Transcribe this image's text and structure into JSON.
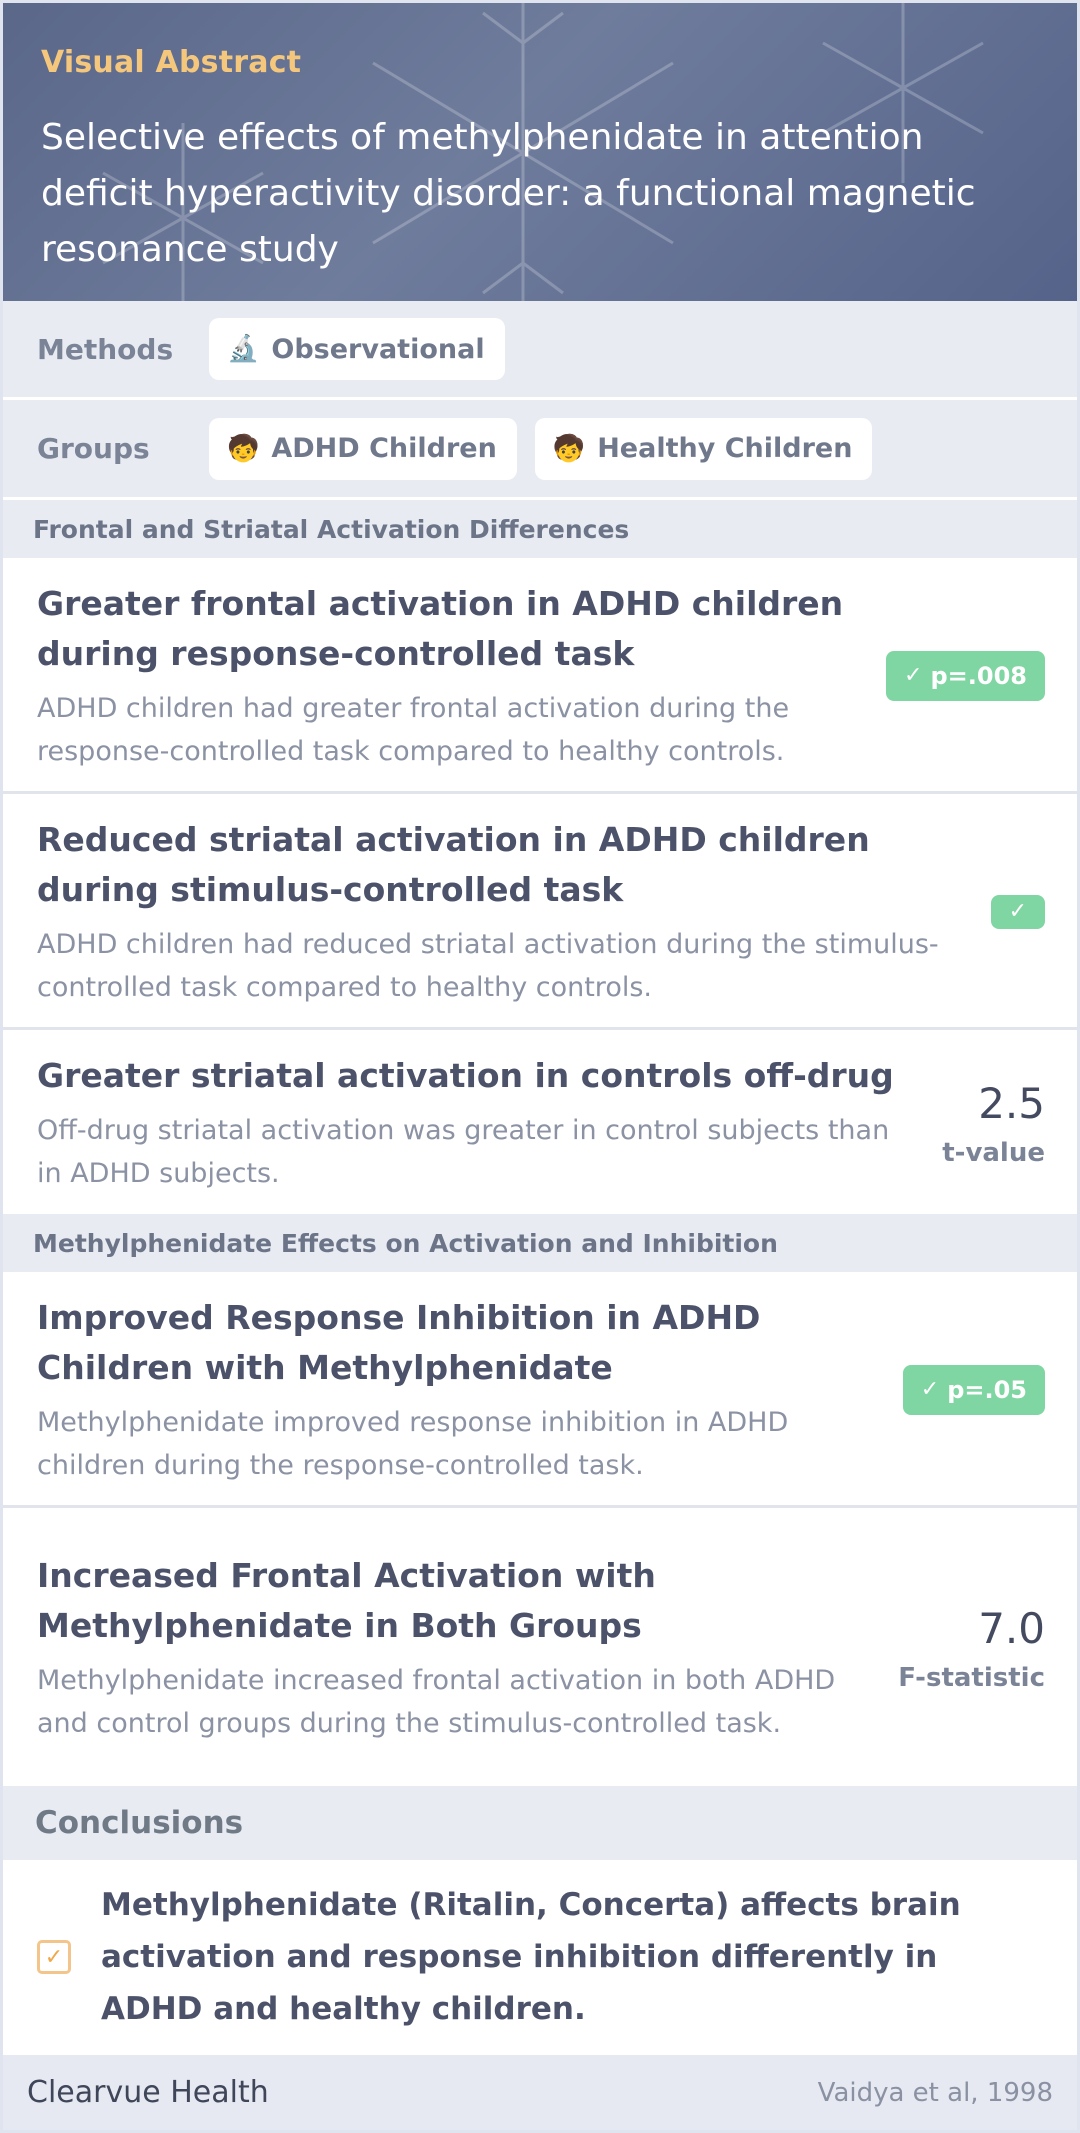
{
  "header": {
    "eyebrow": "Visual Abstract",
    "title": "Selective effects of methylphenidate in attention deficit hyperactivity disorder: a functional magnetic resonance study"
  },
  "methods": {
    "label": "Methods",
    "chips": [
      {
        "icon": "microscope-icon",
        "glyph": "🔬",
        "label": "Observational"
      }
    ]
  },
  "groups": {
    "label": "Groups",
    "chips": [
      {
        "icon": "child-icon",
        "glyph": "🧒",
        "label": "ADHD Children"
      },
      {
        "icon": "child-icon",
        "glyph": "🧒",
        "label": "Healthy Children"
      }
    ]
  },
  "sections": [
    {
      "heading": "Frontal and Striatal Activation Differences",
      "findings": [
        {
          "title": "Greater frontal activation in ADHD children during response-controlled task",
          "description": "ADHD children had greater frontal activation during the response-controlled task compared to healthy controls.",
          "badge": "p=.008"
        },
        {
          "title": "Reduced striatal activation in ADHD children during stimulus-controlled task",
          "description": "ADHD children had reduced striatal activation during the stimulus-controlled task compared to healthy controls.",
          "badge": ""
        },
        {
          "title": "Greater striatal activation in controls off-drug",
          "description": "Off-drug striatal activation was greater in control subjects than in ADHD subjects.",
          "value": "2.5",
          "value_label": "t-value"
        }
      ]
    },
    {
      "heading": "Methylphenidate Effects on Activation and Inhibition",
      "findings": [
        {
          "title": "Improved Response Inhibition in ADHD Children with Methylphenidate",
          "description": "Methylphenidate improved response inhibition in ADHD children during the response-controlled task.",
          "badge": "p=.05"
        },
        {
          "title": "Increased Frontal Activation with Methylphenidate in Both Groups",
          "description": "Methylphenidate increased frontal activation in both ADHD and control groups during the stimulus-controlled task.",
          "value": "7.0",
          "value_label": "F-statistic"
        }
      ]
    }
  ],
  "conclusions": {
    "heading": "Conclusions",
    "text": "Methylphenidate (Ritalin, Concerta) affects brain activation and response inhibition differently in ADHD and healthy children."
  },
  "footer": {
    "brand": "Clearvue Health",
    "citation": "Vaidya et al, 1998"
  },
  "colors": {
    "accent": "#f4c77c",
    "badge": "#7fd6a2",
    "header_bg": "#5f6b8c"
  }
}
